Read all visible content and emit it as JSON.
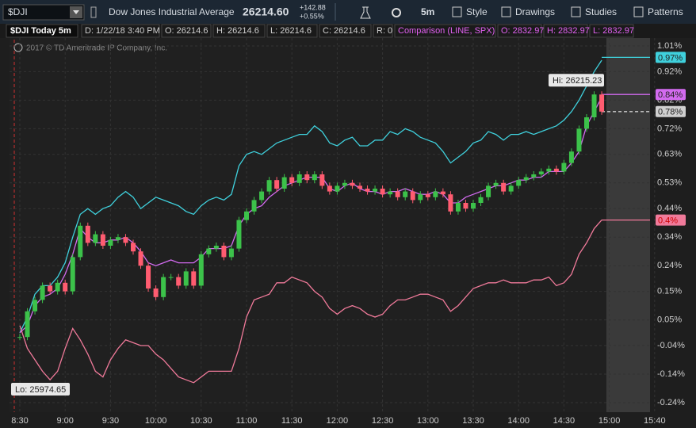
{
  "toolbar": {
    "symbol": "$DJI",
    "description": "Dow Jones Industrial Average",
    "last": "26214.60",
    "change": "+142.88",
    "change_pct": "+0.55%",
    "interval": "5m",
    "buttons": [
      "Style",
      "Drawings",
      "Studies",
      "Patterns"
    ]
  },
  "info_bar": {
    "study": "$DJI Today 5m",
    "fields": [
      "D: 1/22/18 3:40 PM",
      "O: 26214.6",
      "H: 26214.6",
      "L: 26214.6",
      "C: 26214.6",
      "R: 0"
    ],
    "comparison": "Comparison (LINE, SPX)",
    "comparison_fields": [
      "O: 2832.97",
      "H: 2832.97",
      "L: 2832.97"
    ]
  },
  "copyright": "2017 © TD Ameritrade IP Company, Inc.",
  "chart_data": {
    "type": "candlestick",
    "xticks": [
      "8:30",
      "9:00",
      "9:30",
      "10:00",
      "10:30",
      "11:00",
      "11:30",
      "12:00",
      "12:30",
      "13:00",
      "13:30",
      "14:00",
      "14:30",
      "15:00",
      "15:40"
    ],
    "ylim": [
      -0.24,
      1.01
    ],
    "yticks": [
      {
        "value": 1.01,
        "label": "1.01%"
      },
      {
        "value": 0.92,
        "label": "0.92%"
      },
      {
        "value": 0.82,
        "label": "0.82%"
      },
      {
        "value": 0.72,
        "label": "0.72%"
      },
      {
        "value": 0.63,
        "label": "0.63%"
      },
      {
        "value": 0.53,
        "label": "0.53%"
      },
      {
        "value": 0.44,
        "label": "0.44%"
      },
      {
        "value": 0.34,
        "label": "0.34%"
      },
      {
        "value": 0.24,
        "label": "0.24%"
      },
      {
        "value": 0.15,
        "label": "0.15%"
      },
      {
        "value": 0.05,
        "label": "0.05%"
      },
      {
        "value": -0.04,
        "label": "-0.04%"
      },
      {
        "value": -0.14,
        "label": "-0.14%"
      },
      {
        "value": -0.24,
        "label": "-0.24%"
      }
    ],
    "grid": true,
    "candles": {
      "up_color": "#3cc24a",
      "down_color": "#ff5c70",
      "closes": [
        -0.01,
        0.08,
        0.12,
        0.17,
        0.15,
        0.18,
        0.15,
        0.27,
        0.38,
        0.32,
        0.35,
        0.31,
        0.33,
        0.34,
        0.32,
        0.29,
        0.24,
        0.16,
        0.13,
        0.2,
        0.2,
        0.17,
        0.22,
        0.17,
        0.28,
        0.3,
        0.31,
        0.27,
        0.3,
        0.4,
        0.43,
        0.47,
        0.5,
        0.54,
        0.51,
        0.55,
        0.53,
        0.56,
        0.54,
        0.56,
        0.52,
        0.5,
        0.52,
        0.53,
        0.52,
        0.51,
        0.5,
        0.51,
        0.49,
        0.5,
        0.48,
        0.5,
        0.47,
        0.49,
        0.48,
        0.5,
        0.49,
        0.43,
        0.46,
        0.44,
        0.46,
        0.48,
        0.52,
        0.53,
        0.5,
        0.52,
        0.54,
        0.55,
        0.56,
        0.57,
        0.58,
        0.57,
        0.6,
        0.64,
        0.72,
        0.76,
        0.84,
        0.78
      ],
      "end_label": {
        "value": 0.78,
        "label": "0.78%"
      }
    },
    "series": [
      {
        "color": "#3fd0dc",
        "values": [
          0.005,
          0.06,
          0.14,
          0.17,
          0.17,
          0.2,
          0.25,
          0.34,
          0.42,
          0.44,
          0.42,
          0.44,
          0.45,
          0.48,
          0.5,
          0.48,
          0.44,
          0.46,
          0.48,
          0.47,
          0.46,
          0.45,
          0.43,
          0.42,
          0.45,
          0.47,
          0.48,
          0.47,
          0.49,
          0.59,
          0.63,
          0.64,
          0.63,
          0.65,
          0.67,
          0.68,
          0.69,
          0.7,
          0.7,
          0.73,
          0.71,
          0.67,
          0.66,
          0.68,
          0.69,
          0.66,
          0.66,
          0.68,
          0.68,
          0.71,
          0.7,
          0.72,
          0.71,
          0.69,
          0.68,
          0.67,
          0.64,
          0.6,
          0.62,
          0.64,
          0.67,
          0.68,
          0.71,
          0.7,
          0.68,
          0.7,
          0.7,
          0.71,
          0.7,
          0.71,
          0.72,
          0.73,
          0.75,
          0.78,
          0.82,
          0.87,
          0.92,
          0.96
        ],
        "end_label": {
          "value": 0.97,
          "label": "0.97%"
        }
      },
      {
        "color": "#d36bf0",
        "values": [
          0.005,
          0.03,
          0.1,
          0.13,
          0.14,
          0.16,
          0.21,
          0.28,
          0.37,
          0.34,
          0.32,
          0.32,
          0.33,
          0.33,
          0.34,
          0.32,
          0.29,
          0.25,
          0.24,
          0.25,
          0.26,
          0.25,
          0.25,
          0.25,
          0.27,
          0.3,
          0.3,
          0.3,
          0.31,
          0.38,
          0.42,
          0.44,
          0.45,
          0.48,
          0.5,
          0.52,
          0.53,
          0.54,
          0.55,
          0.55,
          0.55,
          0.51,
          0.5,
          0.52,
          0.53,
          0.51,
          0.5,
          0.5,
          0.49,
          0.5,
          0.5,
          0.51,
          0.5,
          0.49,
          0.49,
          0.5,
          0.49,
          0.46,
          0.46,
          0.48,
          0.49,
          0.5,
          0.51,
          0.52,
          0.52,
          0.53,
          0.54,
          0.54,
          0.55,
          0.55,
          0.57,
          0.57,
          0.57,
          0.6,
          0.64,
          0.73,
          0.78,
          0.83
        ],
        "end_label": {
          "value": 0.84,
          "label": "0.84%"
        }
      },
      {
        "color": "#f07a9a",
        "values": [
          0.03,
          -0.05,
          -0.09,
          -0.13,
          -0.16,
          -0.13,
          -0.05,
          0.02,
          -0.02,
          -0.07,
          -0.13,
          -0.15,
          -0.09,
          -0.05,
          -0.02,
          -0.03,
          -0.04,
          -0.04,
          -0.07,
          -0.09,
          -0.12,
          -0.15,
          -0.16,
          -0.17,
          -0.15,
          -0.13,
          -0.13,
          -0.13,
          -0.13,
          -0.05,
          0.06,
          0.12,
          0.13,
          0.14,
          0.18,
          0.18,
          0.2,
          0.19,
          0.18,
          0.15,
          0.13,
          0.09,
          0.07,
          0.09,
          0.1,
          0.09,
          0.07,
          0.06,
          0.07,
          0.1,
          0.12,
          0.12,
          0.13,
          0.14,
          0.14,
          0.13,
          0.12,
          0.08,
          0.1,
          0.13,
          0.16,
          0.17,
          0.18,
          0.18,
          0.19,
          0.18,
          0.18,
          0.18,
          0.19,
          0.19,
          0.2,
          0.17,
          0.18,
          0.21,
          0.28,
          0.32,
          0.37,
          0.4
        ],
        "end_label": {
          "value": 0.4,
          "label": "0.4%"
        }
      }
    ],
    "annotations": {
      "high": "Hi: 26215.23",
      "low": "Lo: 25974.65"
    }
  }
}
